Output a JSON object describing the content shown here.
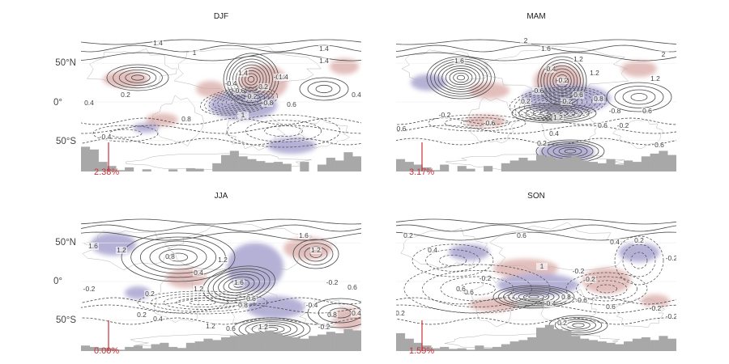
{
  "panels": [
    {
      "id": "djf",
      "title": "DJF",
      "percent_label": "2.38%",
      "percent_value": 2.38,
      "contour_labels": [
        "1.4",
        "1",
        "1.4",
        "1.4",
        "1.4",
        "-0.4",
        "-0.2",
        "0.2",
        "-0.6",
        "-0.4",
        "-0.8",
        "0.4",
        "0.2",
        "0.6",
        "1",
        "-0.4",
        "0.4",
        "0.8",
        "1.4"
      ],
      "histogram": [
        0.9,
        0.8,
        0.35,
        0.2,
        0.05,
        0.15,
        0,
        0.08,
        0,
        0,
        0.08,
        0,
        0.12,
        0.1,
        0,
        0.3,
        0.6,
        0.75,
        0.55,
        0.45,
        0.38,
        0.32,
        0.35,
        0.28,
        0,
        0.35,
        0,
        0.25,
        0.5,
        0.4,
        0.7,
        0.55
      ]
    },
    {
      "id": "mam",
      "title": "MAM",
      "percent_label": "3.17%",
      "percent_value": 3.17,
      "contour_labels": [
        "2",
        "1.6",
        "1.6",
        "1.2",
        "-0.4",
        "-0.2",
        "1.2",
        "-0.6",
        "0.2",
        "-0.2",
        "0.6",
        "0.8",
        "-0.6",
        "-0.2",
        "1.2",
        "0.6",
        "-0.2",
        "1.2",
        "2",
        "0.6",
        "0.4",
        "-0.6",
        "-0.8",
        "0.2",
        "0.6"
      ],
      "histogram": [
        0.45,
        0.35,
        0.25,
        0.15,
        0.05,
        0.25,
        0,
        0.2,
        0.1,
        0,
        0.2,
        0,
        0.3,
        0.4,
        0.5,
        0.4,
        0.6,
        0.55,
        0.45,
        0.5,
        0.55,
        0.4,
        0.35,
        0.3,
        0.45,
        0.25,
        0.4,
        0.35,
        0.55,
        0.65,
        0.75,
        0.6
      ]
    },
    {
      "id": "jja",
      "title": "JJA",
      "percent_label": "0.00%",
      "percent_value": 0.0,
      "contour_labels": [
        "1.6",
        "1.2",
        "0.8",
        "1.2",
        "1.6",
        "1.2",
        "0.4",
        "1.6",
        "-0.2",
        "0.6",
        "-0.2",
        "0.2",
        "1.2",
        "0.2",
        "0.6",
        "0.8",
        "-0.4",
        "0.4",
        "1.2",
        "-0.2",
        "0.4",
        "0.8",
        "0.6",
        "1.2"
      ],
      "histogram": [
        0.2,
        0.15,
        0.12,
        0.1,
        0.05,
        0.15,
        0.2,
        0.1,
        0.25,
        0.3,
        0.15,
        0.1,
        0.3,
        0.35,
        0.45,
        0.4,
        0.5,
        0.55,
        0.6,
        0.65,
        0.7,
        0.75,
        0.65,
        0.55,
        0.5,
        0.45,
        0.55,
        0.6,
        0.7,
        0.65,
        0.8,
        0.75
      ]
    },
    {
      "id": "son",
      "title": "SON",
      "percent_label": "1.59%",
      "percent_value": 1.59,
      "contour_labels": [
        "0.2",
        "0.2",
        "0.4",
        "0.6",
        "1",
        "-0.2",
        "0.2",
        "0.6",
        "0.6",
        "0.8",
        "0.6",
        "-0.4",
        "-0.2",
        "-0.2",
        "0.2",
        "0.4",
        "-0.2",
        "-0.2",
        "0.6",
        "0.2"
      ],
      "histogram": [
        0.65,
        0.45,
        0.3,
        0.2,
        0.1,
        0.15,
        0.08,
        0.1,
        0.05,
        0.2,
        0.1,
        0.15,
        0.25,
        0.35,
        0.4,
        0.5,
        0.85,
        0.95,
        0.8,
        0.75,
        0.55,
        0.45,
        0.4,
        0.35,
        0.3,
        0.25,
        0.35,
        0.45,
        0.5,
        0.4,
        0.55,
        0.45
      ]
    }
  ],
  "lat_ticks": [
    "50°N",
    "0°",
    "50°S"
  ],
  "colors": {
    "positive_shade": "#d9a9a6",
    "negative_shade": "#9d97c9",
    "contour": "#4a4a4a",
    "histogram": "#a8a8a8",
    "percent_line": "#c8323a",
    "coastline": "#b5b5b5"
  }
}
